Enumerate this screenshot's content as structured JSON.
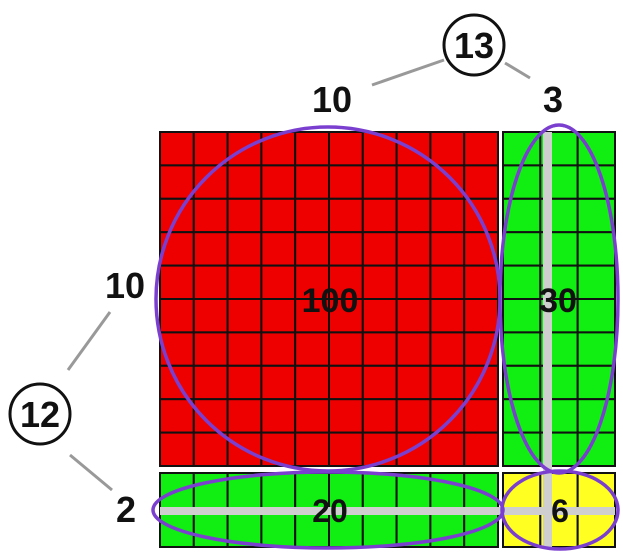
{
  "top": {
    "sum_label": "13",
    "left_label": "10",
    "right_label": "3"
  },
  "left": {
    "sum_label": "12",
    "upper_label": "10",
    "lower_label": "2"
  },
  "blocks": {
    "big_red": {
      "label": "100",
      "rows": 10,
      "cols": 10
    },
    "right_green": {
      "label": "30",
      "rows": 10,
      "cols": 3
    },
    "bottom_green": {
      "label": "20",
      "rows": 2,
      "cols": 10
    },
    "small_yellow": {
      "label": "6",
      "rows": 2,
      "cols": 3
    }
  },
  "colors": {
    "red": "#ee0000",
    "green": "#11ee11",
    "yellow": "#ffff22",
    "ellipse": "#7b3fd0",
    "connector": "#999999"
  }
}
